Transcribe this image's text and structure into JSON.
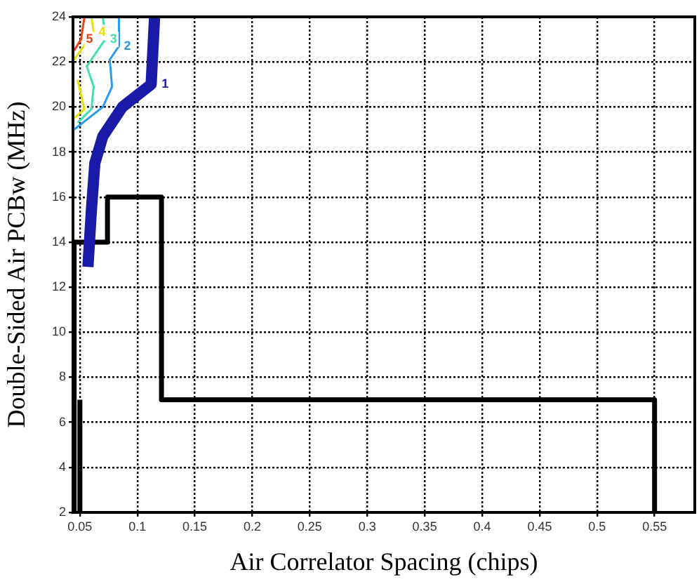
{
  "chart_data": {
    "type": "line",
    "xlabel": "Air Correlator Spacing (chips)",
    "ylabel": "Double-Sided Air PCBw (MHz)",
    "xlim": [
      0.044,
      0.585
    ],
    "xticks": [
      0.05,
      0.1,
      0.15,
      0.2,
      0.25,
      0.3,
      0.35,
      0.4,
      0.45,
      0.5,
      0.55
    ],
    "ylim": [
      2,
      24
    ],
    "yticks": [
      2,
      4,
      6,
      8,
      10,
      12,
      14,
      16,
      18,
      20,
      22,
      24
    ],
    "grid": true,
    "marker": "none",
    "line_style": "solid",
    "legend": false,
    "series": [
      {
        "name": "1",
        "color": "#1a1aa8",
        "x": [
          0.115,
          0.112,
          0.087,
          0.07,
          0.063,
          0.06,
          0.057
        ],
        "values": [
          24,
          21,
          20,
          18.7,
          17.5,
          15.4,
          12.9
        ]
      },
      {
        "name": "2",
        "color": "#2a9af0",
        "x": [
          0.084,
          0.084,
          0.076,
          0.078,
          0.07,
          0.045
        ],
        "values": [
          24,
          22.7,
          22.1,
          20.9,
          20,
          19
        ]
      },
      {
        "name": "3",
        "color": "#40e0b0",
        "x": [
          0.07,
          0.072,
          0.056,
          0.062,
          0.06,
          0.048
        ],
        "values": [
          24,
          23,
          21.8,
          20.9,
          19.9,
          19.3
        ]
      },
      {
        "name": "4",
        "color": "#e8e000",
        "x": [
          0.06,
          0.062,
          0.045,
          null,
          0.048,
          0.054,
          0.045
        ],
        "values": [
          24,
          23.3,
          22.1,
          null,
          21.2,
          19.9,
          19.5
        ]
      },
      {
        "name": "5",
        "color": "#f04010",
        "x": [
          0.054,
          0.051,
          0.045
        ],
        "values": [
          24,
          23,
          22.5
        ]
      },
      {
        "color": "#000000",
        "x": [
          0.045,
          0.045,
          0.074,
          0.074,
          0.121,
          0.121,
          0.55,
          0.55
        ],
        "values": [
          2,
          14,
          14,
          16,
          16,
          7,
          7,
          2
        ]
      },
      {
        "color": "#000000",
        "x": [
          0.05,
          0.05
        ],
        "values": [
          2,
          7
        ]
      }
    ]
  }
}
